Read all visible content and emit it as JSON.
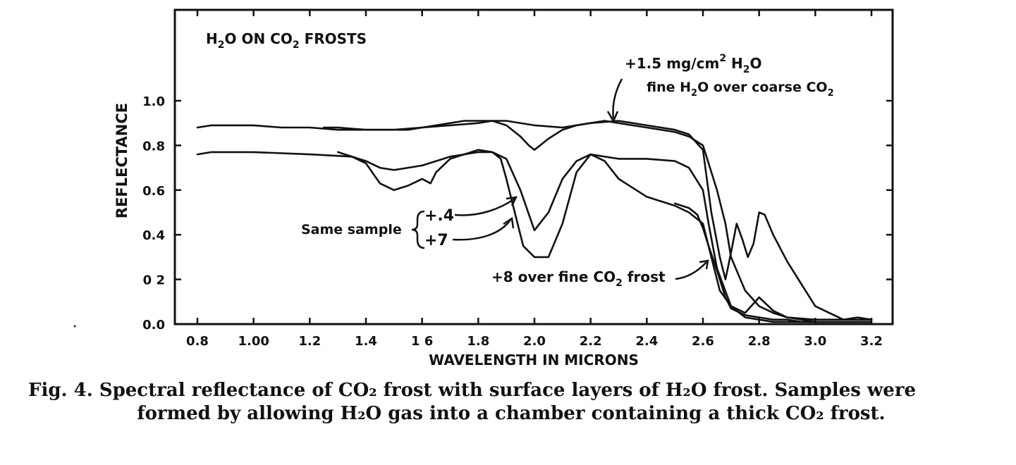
{
  "chart_data": {
    "type": "line",
    "title": "H2O ON CO2 FROSTS",
    "title_parts": {
      "a": "H",
      "b": "2",
      "c": "O ON CO",
      "d": "2",
      "e": " FROSTS"
    },
    "xlabel": "WAVELENGTH IN MICRONS",
    "ylabel": "REFLECTANCE",
    "xlim": [
      0.8,
      3.2
    ],
    "ylim": [
      0.0,
      1.0
    ],
    "x_ticks": [
      {
        "value": 0.8,
        "label": "0.8"
      },
      {
        "value": 1.0,
        "label": "1.00"
      },
      {
        "value": 1.2,
        "label": "1.2"
      },
      {
        "value": 1.4,
        "label": "1.4"
      },
      {
        "value": 1.6,
        "label": "1 6"
      },
      {
        "value": 1.8,
        "label": "1.8"
      },
      {
        "value": 2.0,
        "label": "2.0"
      },
      {
        "value": 2.2,
        "label": "2.2"
      },
      {
        "value": 2.4,
        "label": "2.4"
      },
      {
        "value": 2.6,
        "label": "2.6"
      },
      {
        "value": 2.8,
        "label": "2.8"
      },
      {
        "value": 3.0,
        "label": "3.0"
      },
      {
        "value": 3.2,
        "label": "3.2"
      }
    ],
    "y_ticks": [
      {
        "value": 0.0,
        "label": "0.0"
      },
      {
        "value": 0.2,
        "label": "0 2"
      },
      {
        "value": 0.4,
        "label": "0.4"
      },
      {
        "value": 0.6,
        "label": "0.6"
      },
      {
        "value": 0.8,
        "label": "0.8"
      },
      {
        "value": 1.0,
        "label": "1.0"
      }
    ],
    "grid": false,
    "series": [
      {
        "x": [
          0.8,
          0.85,
          0.9,
          1.0,
          1.1,
          1.2,
          1.3,
          1.4,
          1.45,
          1.5,
          1.55,
          1.6,
          1.65,
          1.7,
          1.75,
          1.8,
          1.85,
          1.9,
          1.95,
          1.98,
          2.0,
          2.02,
          2.05,
          2.1,
          2.15,
          2.2,
          2.25,
          2.3,
          2.4,
          2.5,
          2.55,
          2.6,
          2.62,
          2.65,
          2.68,
          2.7,
          2.75,
          2.8,
          2.85,
          2.9,
          3.0,
          3.1,
          3.15,
          3.2
        ],
        "values": [
          0.88,
          0.89,
          0.89,
          0.89,
          0.88,
          0.88,
          0.87,
          0.87,
          0.87,
          0.87,
          0.87,
          0.88,
          0.89,
          0.9,
          0.91,
          0.91,
          0.91,
          0.89,
          0.84,
          0.8,
          0.78,
          0.8,
          0.83,
          0.87,
          0.89,
          0.9,
          0.91,
          0.9,
          0.88,
          0.86,
          0.84,
          0.8,
          0.72,
          0.6,
          0.45,
          0.3,
          0.15,
          0.08,
          0.05,
          0.03,
          0.02,
          0.02,
          0.03,
          0.02
        ]
      },
      {
        "x": [
          1.25,
          1.3,
          1.4,
          1.5,
          1.6,
          1.7,
          1.8,
          1.85,
          1.9,
          2.0,
          2.1,
          2.2,
          2.3,
          2.4,
          2.5,
          2.55,
          2.6,
          2.63,
          2.66,
          2.68,
          2.7,
          2.72,
          2.74,
          2.76,
          2.78,
          2.8,
          2.82,
          2.85,
          2.9,
          3.0,
          3.1,
          3.2
        ],
        "values": [
          0.88,
          0.88,
          0.87,
          0.87,
          0.88,
          0.89,
          0.9,
          0.91,
          0.91,
          0.89,
          0.88,
          0.9,
          0.91,
          0.89,
          0.87,
          0.85,
          0.78,
          0.5,
          0.3,
          0.2,
          0.32,
          0.45,
          0.38,
          0.3,
          0.36,
          0.5,
          0.49,
          0.4,
          0.28,
          0.08,
          0.02,
          0.02
        ]
      },
      {
        "x": [
          0.8,
          0.85,
          1.0,
          1.2,
          1.35,
          1.4,
          1.45,
          1.5,
          1.55,
          1.6,
          1.65,
          1.7,
          1.75,
          1.8,
          1.85,
          1.9,
          1.95,
          2.0,
          2.05,
          2.1,
          2.15,
          2.2,
          2.25,
          2.3,
          2.4,
          2.5,
          2.55,
          2.6,
          2.62,
          2.65,
          2.7,
          2.75,
          2.8,
          2.85,
          2.9,
          3.0,
          3.1,
          3.2
        ],
        "values": [
          0.76,
          0.77,
          0.77,
          0.76,
          0.75,
          0.73,
          0.7,
          0.69,
          0.7,
          0.71,
          0.73,
          0.75,
          0.76,
          0.77,
          0.77,
          0.74,
          0.6,
          0.42,
          0.5,
          0.65,
          0.73,
          0.76,
          0.75,
          0.74,
          0.74,
          0.73,
          0.7,
          0.6,
          0.45,
          0.25,
          0.08,
          0.03,
          0.02,
          0.01,
          0.01,
          0.01,
          0.01,
          0.01
        ]
      },
      {
        "x": [
          1.3,
          1.35,
          1.4,
          1.45,
          1.5,
          1.55,
          1.6,
          1.63,
          1.65,
          1.7,
          1.75,
          1.8,
          1.85,
          1.88,
          1.9,
          1.93,
          1.96,
          2.0,
          2.05,
          2.1,
          2.15,
          2.2,
          2.25,
          2.3,
          2.4,
          2.5,
          2.55,
          2.6,
          2.63,
          2.66,
          2.7,
          2.75,
          2.8,
          2.85,
          2.9,
          3.0,
          3.1,
          3.2
        ],
        "values": [
          0.77,
          0.75,
          0.72,
          0.63,
          0.6,
          0.62,
          0.65,
          0.63,
          0.68,
          0.74,
          0.76,
          0.78,
          0.77,
          0.74,
          0.65,
          0.5,
          0.35,
          0.3,
          0.3,
          0.45,
          0.68,
          0.76,
          0.73,
          0.65,
          0.57,
          0.53,
          0.5,
          0.45,
          0.3,
          0.15,
          0.08,
          0.05,
          0.12,
          0.06,
          0.03,
          0.01,
          0.01,
          0.01
        ]
      },
      {
        "x": [
          2.5,
          2.55,
          2.58,
          2.6,
          2.62,
          2.65,
          2.68,
          2.7,
          2.75,
          2.8,
          2.85,
          2.9,
          2.95,
          3.0,
          3.1,
          3.2
        ],
        "values": [
          0.54,
          0.52,
          0.49,
          0.43,
          0.35,
          0.24,
          0.12,
          0.07,
          0.04,
          0.03,
          0.02,
          0.02,
          0.01,
          0.01,
          0.01,
          0.01
        ]
      }
    ],
    "annotations": {
      "top_a": "+1.5 mg/cm",
      "top_sup": "2",
      "top_b": " H",
      "top_sub": "2",
      "top_c": "O",
      "sub_a": "fine H",
      "sub_sub1": "2",
      "sub_b": "O over coarse CO",
      "sub_sub2": "2",
      "same_sample": "Same sample",
      "plus4": "+.4",
      "plus7": "+7",
      "plus8_a": "+8 over fine CO",
      "plus8_sub": "2",
      "plus8_b": " frost"
    }
  },
  "caption": {
    "line1": "Fig. 4.  Spectral reflectance of CO₂ frost with surface layers of H₂O frost. Samples were",
    "line2": "formed by allowing H₂O gas into a chamber containing a thick CO₂ frost."
  }
}
